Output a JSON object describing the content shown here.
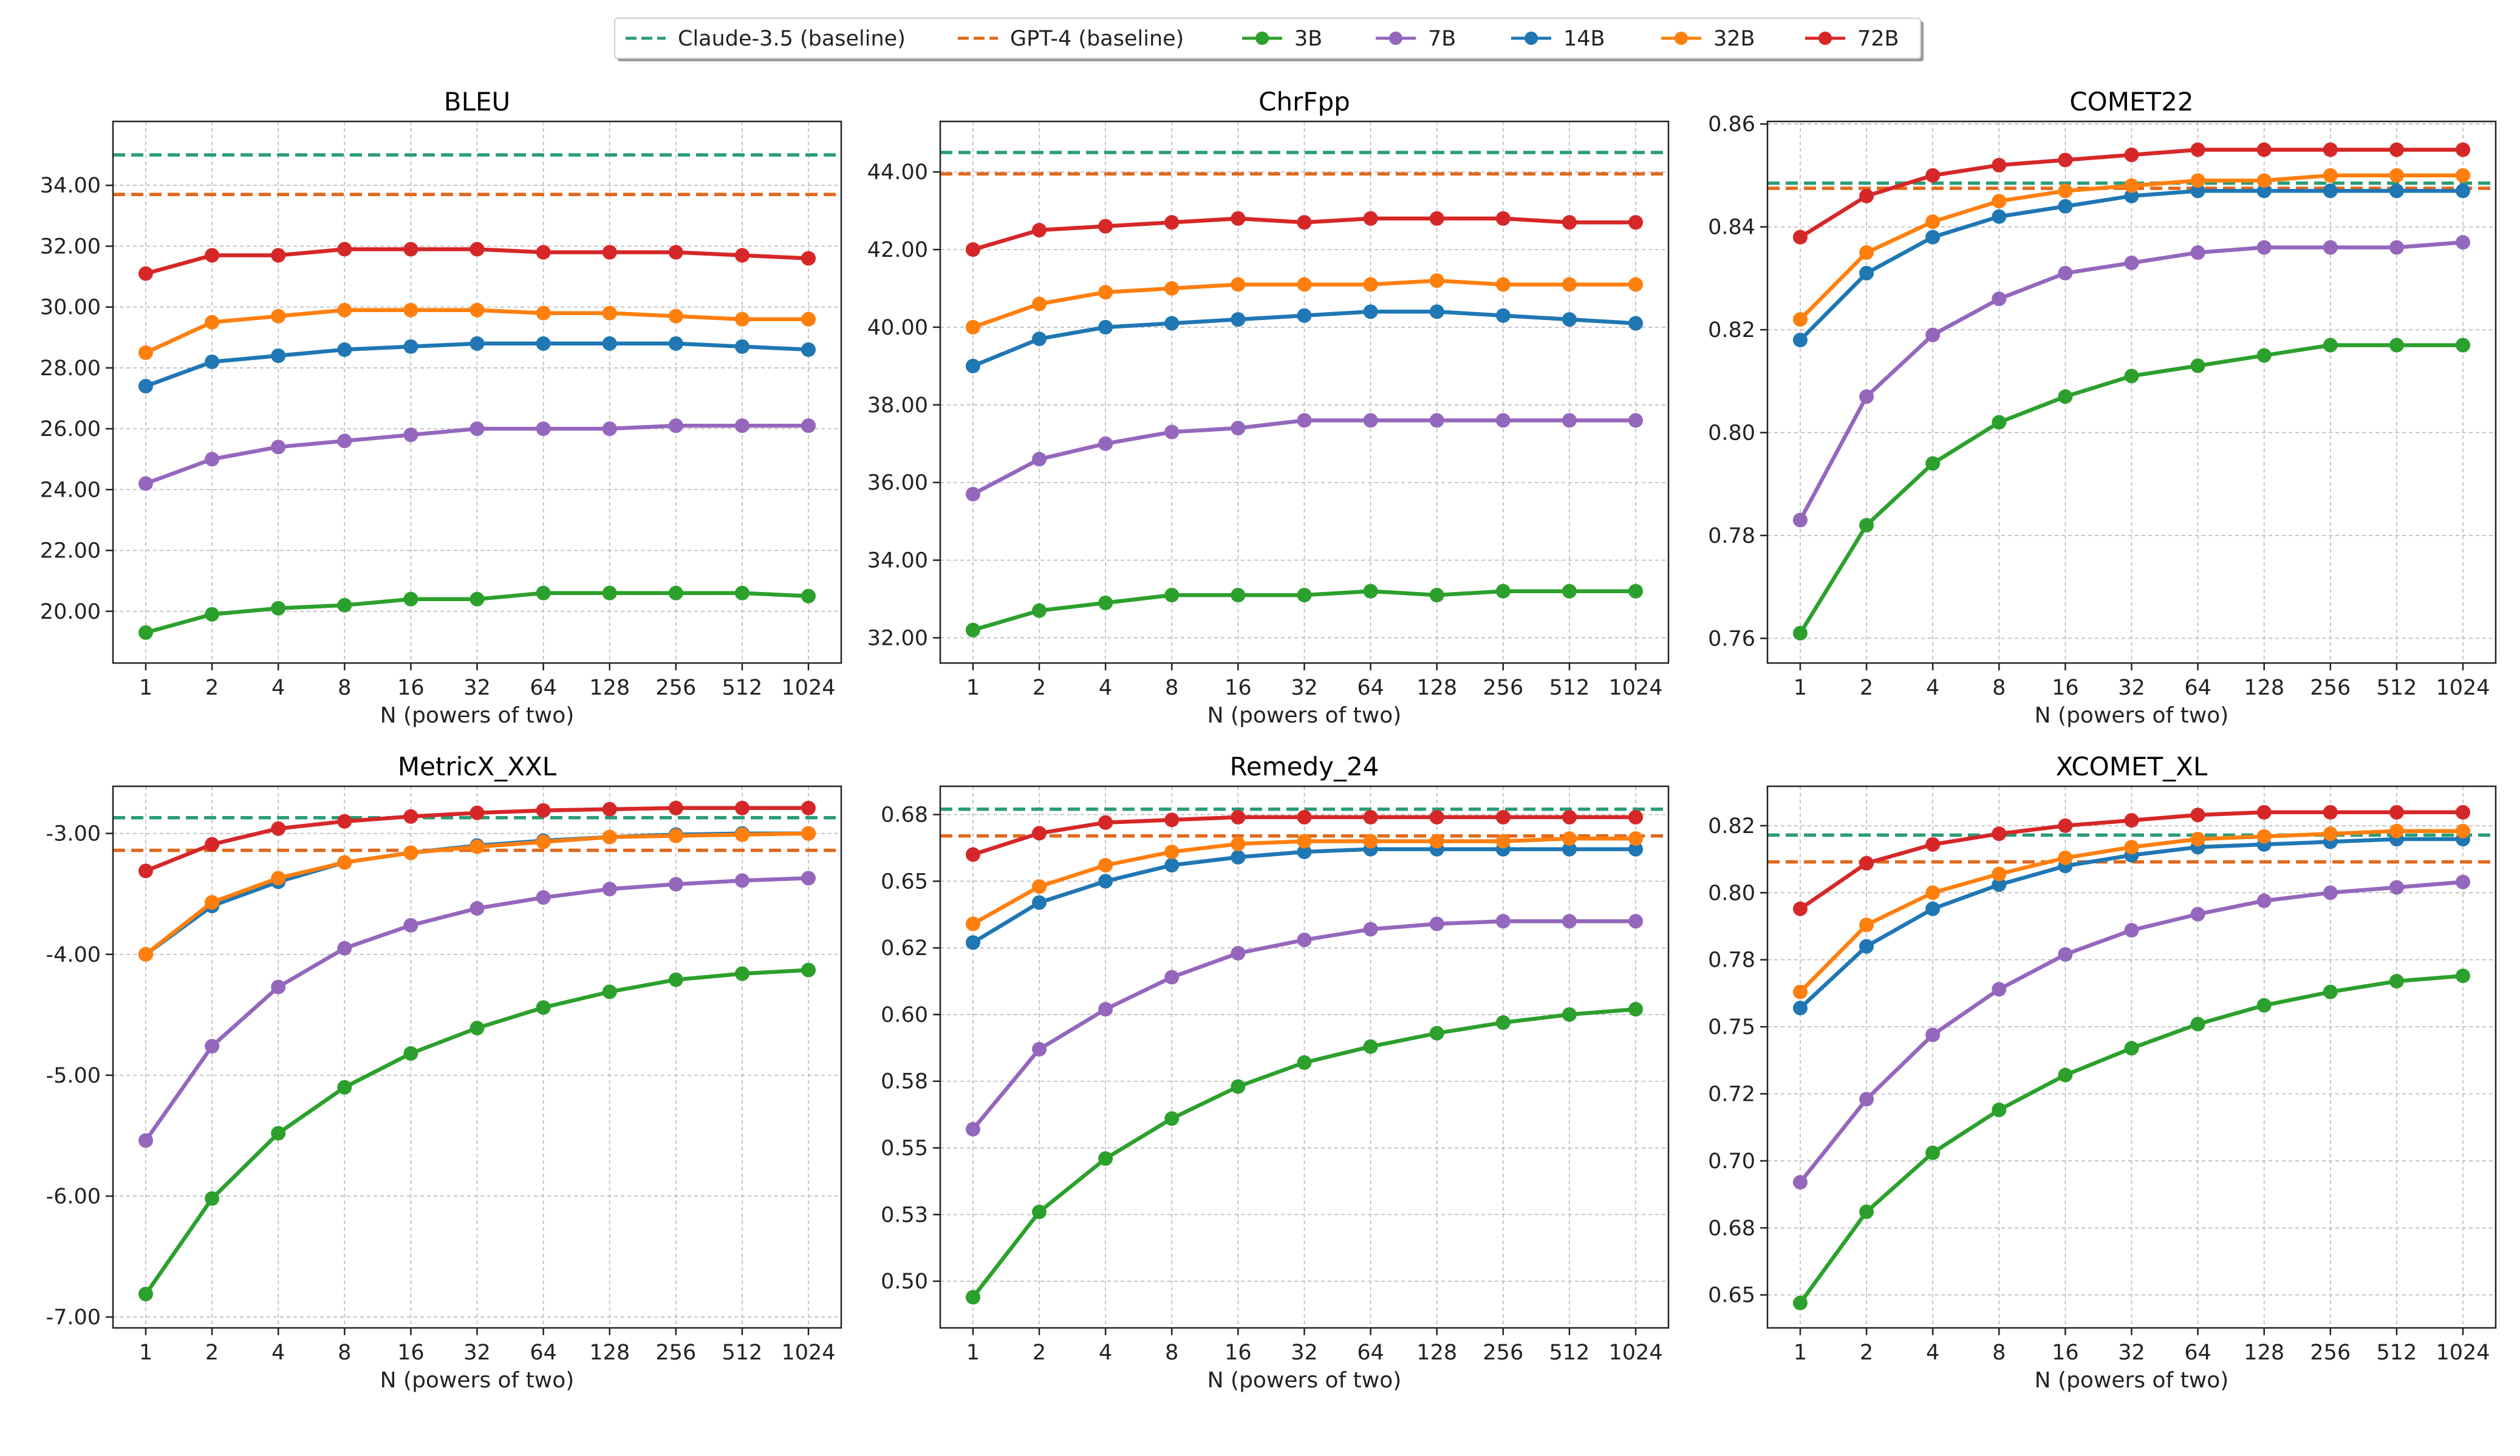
{
  "legend": [
    {
      "label": "Claude-3.5 (baseline)",
      "color": "#2a9d76",
      "style": "dashed"
    },
    {
      "label": "GPT-4 (baseline)",
      "color": "#e0691b",
      "style": "dashed"
    },
    {
      "label": "3B",
      "color": "#2ca02c",
      "style": "solid"
    },
    {
      "label": "7B",
      "color": "#9467bd",
      "style": "solid"
    },
    {
      "label": "14B",
      "color": "#1f77b4",
      "style": "solid"
    },
    {
      "label": "32B",
      "color": "#ff7f0e",
      "style": "solid"
    },
    {
      "label": "72B",
      "color": "#d62728",
      "style": "solid"
    }
  ],
  "chart_data": [
    {
      "type": "line",
      "title": "BLEU",
      "xlabel": "N (powers of two)",
      "ylabel": "",
      "categories": [
        "1",
        "2",
        "4",
        "8",
        "16",
        "32",
        "64",
        "128",
        "256",
        "512",
        "1024"
      ],
      "ylim": [
        18.3,
        36.1
      ],
      "yticks": [
        20,
        22,
        24,
        26,
        28,
        30,
        32,
        34
      ],
      "ytick_labels": [
        "20.00",
        "22.00",
        "24.00",
        "26.00",
        "28.00",
        "30.00",
        "32.00",
        "34.00"
      ],
      "baselines": [
        {
          "name": "Claude-3.5 (baseline)",
          "value": 35.0
        },
        {
          "name": "GPT-4 (baseline)",
          "value": 33.7
        }
      ],
      "series": [
        {
          "name": "3B",
          "values": [
            19.3,
            19.9,
            20.1,
            20.2,
            20.4,
            20.4,
            20.6,
            20.6,
            20.6,
            20.6,
            20.5
          ]
        },
        {
          "name": "7B",
          "values": [
            24.2,
            25.0,
            25.4,
            25.6,
            25.8,
            26.0,
            26.0,
            26.0,
            26.1,
            26.1,
            26.1
          ]
        },
        {
          "name": "14B",
          "values": [
            27.4,
            28.2,
            28.4,
            28.6,
            28.7,
            28.8,
            28.8,
            28.8,
            28.8,
            28.7,
            28.6
          ]
        },
        {
          "name": "32B",
          "values": [
            28.5,
            29.5,
            29.7,
            29.9,
            29.9,
            29.9,
            29.8,
            29.8,
            29.7,
            29.6,
            29.6
          ]
        },
        {
          "name": "72B",
          "values": [
            31.1,
            31.7,
            31.7,
            31.9,
            31.9,
            31.9,
            31.8,
            31.8,
            31.8,
            31.7,
            31.6
          ]
        }
      ]
    },
    {
      "type": "line",
      "title": "ChrFpp",
      "xlabel": "N (powers of two)",
      "ylabel": "",
      "categories": [
        "1",
        "2",
        "4",
        "8",
        "16",
        "32",
        "64",
        "128",
        "256",
        "512",
        "1024"
      ],
      "ylim": [
        31.35,
        45.3
      ],
      "yticks": [
        32,
        34,
        36,
        38,
        40,
        42,
        44
      ],
      "ytick_labels": [
        "32.00",
        "34.00",
        "36.00",
        "38.00",
        "40.00",
        "42.00",
        "44.00"
      ],
      "baselines": [
        {
          "name": "Claude-3.5 (baseline)",
          "value": 44.5
        },
        {
          "name": "GPT-4 (baseline)",
          "value": 43.95
        }
      ],
      "series": [
        {
          "name": "3B",
          "values": [
            32.2,
            32.7,
            32.9,
            33.1,
            33.1,
            33.1,
            33.2,
            33.1,
            33.2,
            33.2,
            33.2
          ]
        },
        {
          "name": "7B",
          "values": [
            35.7,
            36.6,
            37.0,
            37.3,
            37.4,
            37.6,
            37.6,
            37.6,
            37.6,
            37.6,
            37.6
          ]
        },
        {
          "name": "14B",
          "values": [
            39.0,
            39.7,
            40.0,
            40.1,
            40.2,
            40.3,
            40.4,
            40.4,
            40.3,
            40.2,
            40.1
          ]
        },
        {
          "name": "32B",
          "values": [
            40.0,
            40.6,
            40.9,
            41.0,
            41.1,
            41.1,
            41.1,
            41.2,
            41.1,
            41.1,
            41.1
          ]
        },
        {
          "name": "72B",
          "values": [
            42.0,
            42.5,
            42.6,
            42.7,
            42.8,
            42.7,
            42.8,
            42.8,
            42.8,
            42.7,
            42.7
          ]
        }
      ]
    },
    {
      "type": "line",
      "title": "COMET22",
      "xlabel": "N (powers of two)",
      "ylabel": "",
      "categories": [
        "1",
        "2",
        "4",
        "8",
        "16",
        "32",
        "64",
        "128",
        "256",
        "512",
        "1024"
      ],
      "ylim": [
        0.7552,
        0.8605
      ],
      "yticks": [
        0.76,
        0.78,
        0.8,
        0.82,
        0.84,
        0.86
      ],
      "ytick_labels": [
        "0.76",
        "0.78",
        "0.80",
        "0.82",
        "0.84",
        "0.86"
      ],
      "baselines": [
        {
          "name": "Claude-3.5 (baseline)",
          "value": 0.8485
        },
        {
          "name": "GPT-4 (baseline)",
          "value": 0.8475
        }
      ],
      "series": [
        {
          "name": "3B",
          "values": [
            0.761,
            0.782,
            0.794,
            0.802,
            0.807,
            0.811,
            0.813,
            0.815,
            0.817,
            0.817,
            0.817
          ]
        },
        {
          "name": "7B",
          "values": [
            0.783,
            0.807,
            0.819,
            0.826,
            0.831,
            0.833,
            0.835,
            0.836,
            0.836,
            0.836,
            0.837
          ]
        },
        {
          "name": "14B",
          "values": [
            0.818,
            0.831,
            0.838,
            0.842,
            0.844,
            0.846,
            0.847,
            0.847,
            0.847,
            0.847,
            0.847
          ]
        },
        {
          "name": "32B",
          "values": [
            0.822,
            0.835,
            0.841,
            0.845,
            0.847,
            0.848,
            0.849,
            0.849,
            0.85,
            0.85,
            0.85
          ]
        },
        {
          "name": "72B",
          "values": [
            0.838,
            0.846,
            0.85,
            0.852,
            0.853,
            0.854,
            0.855,
            0.855,
            0.855,
            0.855,
            0.855
          ]
        }
      ]
    },
    {
      "type": "line",
      "title": "MetricX_XXL",
      "xlabel": "N (powers of two)",
      "ylabel": "",
      "categories": [
        "1",
        "2",
        "4",
        "8",
        "16",
        "32",
        "64",
        "128",
        "256",
        "512",
        "1024"
      ],
      "ylim": [
        -7.09,
        -2.61
      ],
      "yticks": [
        -7,
        -6,
        -5,
        -4,
        -3
      ],
      "ytick_labels": [
        "-7.00",
        "-6.00",
        "-5.00",
        "-4.00",
        "-3.00"
      ],
      "baselines": [
        {
          "name": "Claude-3.5 (baseline)",
          "value": -2.87
        },
        {
          "name": "GPT-4 (baseline)",
          "value": -3.14
        }
      ],
      "series": [
        {
          "name": "3B",
          "values": [
            -6.81,
            -6.02,
            -5.48,
            -5.1,
            -4.82,
            -4.61,
            -4.44,
            -4.31,
            -4.21,
            -4.16,
            -4.13
          ]
        },
        {
          "name": "7B",
          "values": [
            -5.54,
            -4.76,
            -4.27,
            -3.95,
            -3.76,
            -3.62,
            -3.53,
            -3.46,
            -3.42,
            -3.39,
            -3.37
          ]
        },
        {
          "name": "14B",
          "values": [
            -4.0,
            -3.6,
            -3.4,
            -3.24,
            -3.16,
            -3.1,
            -3.06,
            -3.03,
            -3.01,
            -3.0,
            -3.0
          ]
        },
        {
          "name": "32B",
          "values": [
            -4.0,
            -3.57,
            -3.37,
            -3.24,
            -3.16,
            -3.11,
            -3.07,
            -3.03,
            -3.02,
            -3.01,
            -3.0
          ]
        },
        {
          "name": "72B",
          "values": [
            -3.31,
            -3.09,
            -2.96,
            -2.9,
            -2.86,
            -2.83,
            -2.81,
            -2.8,
            -2.79,
            -2.79,
            -2.79
          ]
        }
      ]
    },
    {
      "type": "line",
      "title": "Remedy_24",
      "xlabel": "N (powers of two)",
      "ylabel": "",
      "categories": [
        "1",
        "2",
        "4",
        "8",
        "16",
        "32",
        "64",
        "128",
        "256",
        "512",
        "1024"
      ],
      "ylim": [
        0.4825,
        0.6856
      ],
      "yticks": [
        0.5,
        0.525,
        0.55,
        0.575,
        0.6,
        0.625,
        0.65,
        0.675
      ],
      "ytick_labels": [
        "0.50",
        "0.53",
        "0.55",
        "0.58",
        "0.60",
        "0.62",
        "0.65",
        "0.68"
      ],
      "baselines": [
        {
          "name": "Claude-3.5 (baseline)",
          "value": 0.677
        },
        {
          "name": "GPT-4 (baseline)",
          "value": 0.667
        }
      ],
      "series": [
        {
          "name": "3B",
          "values": [
            0.494,
            0.526,
            0.546,
            0.561,
            0.573,
            0.582,
            0.588,
            0.593,
            0.597,
            0.6,
            0.602
          ]
        },
        {
          "name": "7B",
          "values": [
            0.557,
            0.587,
            0.602,
            0.614,
            0.623,
            0.628,
            0.632,
            0.634,
            0.635,
            0.635,
            0.635
          ]
        },
        {
          "name": "14B",
          "values": [
            0.627,
            0.642,
            0.65,
            0.656,
            0.659,
            0.661,
            0.662,
            0.662,
            0.662,
            0.662,
            0.662
          ]
        },
        {
          "name": "32B",
          "values": [
            0.634,
            0.648,
            0.656,
            0.661,
            0.664,
            0.665,
            0.665,
            0.665,
            0.665,
            0.666,
            0.666
          ]
        },
        {
          "name": "72B",
          "values": [
            0.66,
            0.668,
            0.672,
            0.673,
            0.674,
            0.674,
            0.674,
            0.674,
            0.674,
            0.674,
            0.674
          ]
        }
      ]
    },
    {
      "type": "line",
      "title": "XCOMET_XL",
      "xlabel": "N (powers of two)",
      "ylabel": "",
      "categories": [
        "1",
        "2",
        "4",
        "8",
        "16",
        "32",
        "64",
        "128",
        "256",
        "512",
        "1024"
      ],
      "ylim": [
        0.6377,
        0.8397
      ],
      "yticks": [
        0.65,
        0.675,
        0.7,
        0.725,
        0.75,
        0.775,
        0.8,
        0.825
      ],
      "ytick_labels": [
        "0.65",
        "0.68",
        "0.70",
        "0.72",
        "0.75",
        "0.78",
        "0.80",
        "0.82"
      ],
      "baselines": [
        {
          "name": "Claude-3.5 (baseline)",
          "value": 0.8215
        },
        {
          "name": "GPT-4 (baseline)",
          "value": 0.8115
        }
      ],
      "series": [
        {
          "name": "3B",
          "values": [
            0.647,
            0.681,
            0.703,
            0.719,
            0.732,
            0.742,
            0.751,
            0.758,
            0.763,
            0.767,
            0.769
          ]
        },
        {
          "name": "7B",
          "values": [
            0.692,
            0.723,
            0.747,
            0.764,
            0.777,
            0.786,
            0.792,
            0.797,
            0.8,
            0.802,
            0.804
          ]
        },
        {
          "name": "14B",
          "values": [
            0.757,
            0.78,
            0.794,
            0.803,
            0.81,
            0.814,
            0.817,
            0.818,
            0.819,
            0.82,
            0.82
          ]
        },
        {
          "name": "32B",
          "values": [
            0.763,
            0.788,
            0.8,
            0.807,
            0.813,
            0.817,
            0.82,
            0.821,
            0.822,
            0.823,
            0.823
          ]
        },
        {
          "name": "72B",
          "values": [
            0.794,
            0.811,
            0.818,
            0.822,
            0.825,
            0.827,
            0.829,
            0.83,
            0.83,
            0.83,
            0.83
          ]
        }
      ]
    }
  ]
}
